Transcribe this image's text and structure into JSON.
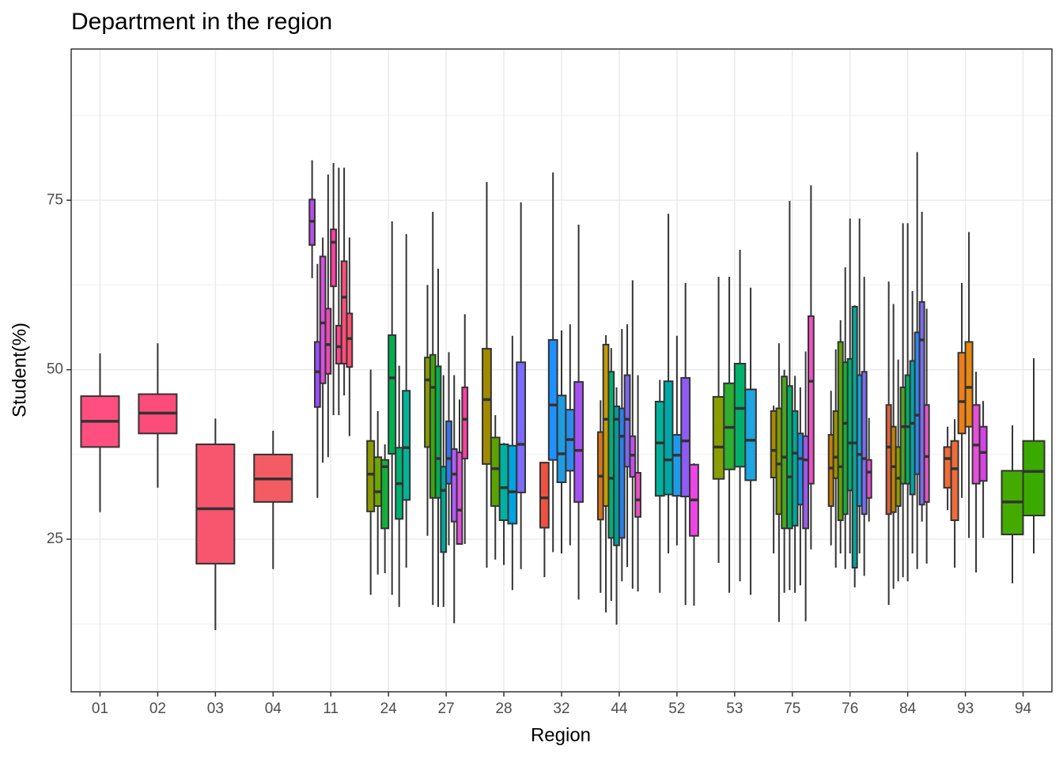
{
  "chart_data": {
    "type": "boxplot",
    "title": "Department in the region",
    "x_label": "Region",
    "y_label": "Student(%)",
    "categories": [
      "01",
      "02",
      "03",
      "04",
      "11",
      "24",
      "27",
      "28",
      "32",
      "44",
      "52",
      "53",
      "75",
      "76",
      "84",
      "93",
      "94"
    ],
    "ylim": [
      2.5,
      97.3
    ],
    "yticks": [
      25,
      50,
      75
    ],
    "grid": true,
    "minor_grid": true,
    "boxes": [
      [
        {
          "min": 29.0,
          "q1": 38.6,
          "median": 42.4,
          "q3": 46.1,
          "max": 52.4,
          "color": "#FF4F80"
        }
      ],
      [
        {
          "min": 32.6,
          "q1": 40.6,
          "median": 43.6,
          "q3": 46.4,
          "max": 53.9,
          "color": "#FC4C7A"
        }
      ],
      [
        {
          "min": 11.6,
          "q1": 21.4,
          "median": 29.5,
          "q3": 39.0,
          "max": 42.8,
          "color": "#F8566E"
        }
      ],
      [
        {
          "min": 20.6,
          "q1": 30.5,
          "median": 33.9,
          "q3": 37.5,
          "max": 41.0,
          "color": "#F35C62"
        }
      ],
      [
        {
          "min": 63.5,
          "q1": 68.4,
          "median": 71.9,
          "q3": 75.1,
          "max": 80.9,
          "color": "#B84FE8"
        },
        {
          "min": 31.1,
          "q1": 44.5,
          "median": 49.7,
          "q3": 54.1,
          "max": 65.6,
          "color": "#9B4DFF"
        },
        {
          "min": 36.3,
          "q1": 48.0,
          "median": 56.9,
          "q3": 66.7,
          "max": 69.5,
          "color": "#D94FE0"
        },
        {
          "min": 37.1,
          "q1": 49.4,
          "median": 53.7,
          "q3": 59.0,
          "max": 78.8,
          "color": "#E84BB0"
        },
        {
          "min": 43.3,
          "q1": 62.3,
          "median": 68.8,
          "q3": 70.7,
          "max": 80.5,
          "color": "#FF3FA0"
        },
        {
          "min": 43.3,
          "q1": 50.9,
          "median": 53.4,
          "q3": 56.5,
          "max": 79.8,
          "color": "#FF4590"
        },
        {
          "min": 46.2,
          "q1": 50.9,
          "median": 60.7,
          "q3": 66.0,
          "max": 79.8,
          "color": "#FF4F78"
        },
        {
          "min": 40.2,
          "q1": 50.4,
          "median": 54.6,
          "q3": 58.3,
          "max": 69.5,
          "color": "#FF5070"
        }
      ],
      [
        {
          "min": 16.8,
          "q1": 29.1,
          "median": 34.6,
          "q3": 39.5,
          "max": 50.0,
          "color": "#8B9A00"
        },
        {
          "min": 19.8,
          "q1": 29.9,
          "median": 32.0,
          "q3": 37.1,
          "max": 43.9,
          "color": "#6AA700"
        },
        {
          "min": 20.0,
          "q1": 26.6,
          "median": 35.7,
          "q3": 36.7,
          "max": 39.0,
          "color": "#13B03A"
        },
        {
          "min": 16.8,
          "q1": 37.6,
          "median": 48.8,
          "q3": 55.1,
          "max": 71.9,
          "color": "#00B050"
        },
        {
          "min": 15.0,
          "q1": 28.0,
          "median": 33.2,
          "q3": 38.5,
          "max": 50.6,
          "color": "#00B070"
        },
        {
          "min": 20.8,
          "q1": 30.8,
          "median": 38.5,
          "q3": 46.9,
          "max": 70.0,
          "color": "#00B59B"
        }
      ],
      [
        {
          "min": 25.5,
          "q1": 38.6,
          "median": 48.5,
          "q3": 51.8,
          "max": 62.5,
          "color": "#8A9A00"
        },
        {
          "min": 15.3,
          "q1": 31.1,
          "median": 47.4,
          "q3": 52.2,
          "max": 73.3,
          "color": "#3BA80A"
        },
        {
          "min": 15.0,
          "q1": 31.1,
          "median": 36.9,
          "q3": 50.5,
          "max": 64.9,
          "color": "#00B050"
        },
        {
          "min": 15.0,
          "q1": 23.1,
          "median": 32.2,
          "q3": 35.7,
          "max": 49.2,
          "color": "#00A99A"
        },
        {
          "min": 24.1,
          "q1": 33.2,
          "median": 36.9,
          "q3": 42.4,
          "max": 52.6,
          "color": "#3377EE"
        },
        {
          "min": 12.6,
          "q1": 27.6,
          "median": 34.6,
          "q3": 38.3,
          "max": 49.2,
          "color": "#B05BFF"
        },
        {
          "min": 24.3,
          "q1": 24.3,
          "median": 29.3,
          "q3": 37.8,
          "max": 45.6,
          "color": "#E052D8"
        },
        {
          "min": 24.3,
          "q1": 36.9,
          "median": 42.7,
          "q3": 47.4,
          "max": 58.2,
          "color": "#FF3FA0"
        }
      ],
      [
        {
          "min": 20.8,
          "q1": 36.1,
          "median": 45.6,
          "q3": 53.1,
          "max": 77.7,
          "color": "#A18A00"
        },
        {
          "min": 22.0,
          "q1": 29.9,
          "median": 35.4,
          "q3": 40.0,
          "max": 43.3,
          "color": "#5BA300"
        },
        {
          "min": 21.2,
          "q1": 27.8,
          "median": 32.6,
          "q3": 39.0,
          "max": 39.2,
          "color": "#00B0A0"
        },
        {
          "min": 17.5,
          "q1": 27.3,
          "median": 32.0,
          "q3": 38.8,
          "max": 55.0,
          "color": "#00A3E0"
        },
        {
          "min": 20.6,
          "q1": 31.9,
          "median": 39.0,
          "q3": 51.1,
          "max": 74.7,
          "color": "#7B6BFF"
        }
      ],
      [
        {
          "min": 19.4,
          "q1": 26.7,
          "median": 31.1,
          "q3": 36.3,
          "max": 36.4,
          "color": "#F0513F"
        },
        {
          "min": 23.1,
          "q1": 36.7,
          "median": 44.8,
          "q3": 54.4,
          "max": 79.1,
          "color": "#1E90FF"
        },
        {
          "min": 22.9,
          "q1": 33.4,
          "median": 37.6,
          "q3": 46.2,
          "max": 55.8,
          "color": "#1F9CE0"
        },
        {
          "min": 24.1,
          "q1": 35.1,
          "median": 39.7,
          "q3": 44.1,
          "max": 56.7,
          "color": "#2A8CEB"
        },
        {
          "min": 16.1,
          "q1": 30.5,
          "median": 38.1,
          "q3": 48.2,
          "max": 71.4,
          "color": "#A552F2"
        }
      ],
      [
        {
          "min": 17.1,
          "q1": 27.9,
          "median": 34.3,
          "q3": 40.8,
          "max": 45.5,
          "color": "#D9731A"
        },
        {
          "min": 14.2,
          "q1": 29.9,
          "median": 42.7,
          "q3": 53.7,
          "max": 55.1,
          "color": "#C79B00"
        },
        {
          "min": 15.9,
          "q1": 25.2,
          "median": 34.0,
          "q3": 49.7,
          "max": 53.2,
          "color": "#00B070"
        },
        {
          "min": 12.4,
          "q1": 24.1,
          "median": 42.7,
          "q3": 44.6,
          "max": 47.4,
          "color": "#009E9E"
        },
        {
          "min": 18.8,
          "q1": 25.2,
          "median": 40.2,
          "q3": 44.3,
          "max": 56.0,
          "color": "#2A80EB"
        },
        {
          "min": 20.9,
          "q1": 35.7,
          "median": 42.7,
          "q3": 49.2,
          "max": 56.7,
          "color": "#7F66F0"
        },
        {
          "min": 17.7,
          "q1": 34.2,
          "median": 37.4,
          "q3": 40.2,
          "max": 63.2,
          "color": "#C24FE6"
        },
        {
          "min": 17.3,
          "q1": 28.3,
          "median": 30.8,
          "q3": 34.8,
          "max": 49.2,
          "color": "#E94FC2"
        }
      ],
      [
        {
          "min": 17.1,
          "q1": 31.4,
          "median": 39.2,
          "q3": 45.3,
          "max": 48.5,
          "color": "#00B29A"
        },
        {
          "min": 22.9,
          "q1": 31.6,
          "median": 36.7,
          "q3": 48.3,
          "max": 73.0,
          "color": "#00A7A7"
        },
        {
          "min": 24.1,
          "q1": 31.4,
          "median": 37.4,
          "q3": 40.4,
          "max": 55.0,
          "color": "#1D9BEA"
        },
        {
          "min": 15.3,
          "q1": 31.3,
          "median": 39.5,
          "q3": 48.8,
          "max": 62.8,
          "color": "#8E5BF3"
        },
        {
          "min": 15.2,
          "q1": 25.5,
          "median": 30.8,
          "q3": 36.0,
          "max": 36.2,
          "color": "#EE45E6"
        }
      ],
      [
        {
          "min": 21.5,
          "q1": 33.9,
          "median": 38.6,
          "q3": 46.0,
          "max": 63.7,
          "color": "#8B9E00"
        },
        {
          "min": 17.1,
          "q1": 35.3,
          "median": 41.5,
          "q3": 48.0,
          "max": 63.7,
          "color": "#2FAE2F"
        },
        {
          "min": 18.8,
          "q1": 35.7,
          "median": 44.3,
          "q3": 50.9,
          "max": 67.7,
          "color": "#00B06A"
        },
        {
          "min": 16.8,
          "q1": 33.7,
          "median": 39.6,
          "q3": 47.1,
          "max": 62.1,
          "color": "#1EA6E0"
        }
      ],
      [
        {
          "min": 22.9,
          "q1": 34.1,
          "median": 38.1,
          "q3": 43.9,
          "max": 44.7,
          "color": "#A88B00"
        },
        {
          "min": 12.8,
          "q1": 28.7,
          "median": 36.1,
          "q3": 44.3,
          "max": 53.9,
          "color": "#7F9A00"
        },
        {
          "min": 17.1,
          "q1": 26.6,
          "median": 37.1,
          "q3": 49.0,
          "max": 50.0,
          "color": "#4AA61C"
        },
        {
          "min": 17.5,
          "q1": 26.6,
          "median": 34.2,
          "q3": 47.6,
          "max": 74.9,
          "color": "#00AE63"
        },
        {
          "min": 17.1,
          "q1": 27.0,
          "median": 37.7,
          "q3": 43.9,
          "max": 49.1,
          "color": "#00A898"
        },
        {
          "min": 18.2,
          "q1": 30.1,
          "median": 36.9,
          "q3": 40.6,
          "max": 47.4,
          "color": "#1B8FE5"
        },
        {
          "min": 12.9,
          "q1": 26.6,
          "median": 36.7,
          "q3": 40.2,
          "max": 52.7,
          "color": "#9D5AF0"
        },
        {
          "min": 23.5,
          "q1": 33.2,
          "median": 48.3,
          "q3": 57.9,
          "max": 77.2,
          "color": "#F24FC7"
        }
      ],
      [
        {
          "min": 24.1,
          "q1": 29.9,
          "median": 35.5,
          "q3": 40.4,
          "max": 46.9,
          "color": "#C87E00"
        },
        {
          "min": 20.8,
          "q1": 34.0,
          "median": 37.1,
          "q3": 43.9,
          "max": 53.0,
          "color": "#9E9200"
        },
        {
          "min": 22.9,
          "q1": 27.8,
          "median": 35.7,
          "q3": 54.1,
          "max": 57.3,
          "color": "#5FA600"
        },
        {
          "min": 20.6,
          "q1": 28.7,
          "median": 42.1,
          "q3": 51.1,
          "max": 65.1,
          "color": "#16B03A"
        },
        {
          "min": 22.9,
          "q1": 32.2,
          "median": 39.2,
          "q3": 51.6,
          "max": 72.3,
          "color": "#00AD72"
        },
        {
          "min": 17.9,
          "q1": 20.8,
          "median": 39.2,
          "q3": 59.3,
          "max": 59.5,
          "color": "#00A89E"
        },
        {
          "min": 22.9,
          "q1": 29.9,
          "median": 37.5,
          "q3": 49.2,
          "max": 72.3,
          "color": "#18A0D8"
        },
        {
          "min": 19.6,
          "q1": 28.7,
          "median": 36.9,
          "q3": 49.7,
          "max": 63.7,
          "color": "#7A6AF4"
        },
        {
          "min": 27.6,
          "q1": 31.1,
          "median": 34.9,
          "q3": 36.7,
          "max": 42.9,
          "color": "#E24FCF"
        }
      ],
      [
        {
          "min": 15.3,
          "q1": 28.7,
          "median": 38.6,
          "q3": 44.8,
          "max": 63.0,
          "color": "#E0623A"
        },
        {
          "min": 17.7,
          "q1": 29.0,
          "median": 35.7,
          "q3": 41.6,
          "max": 59.7,
          "color": "#C48200"
        },
        {
          "min": 18.8,
          "q1": 29.9,
          "median": 34.0,
          "q3": 38.6,
          "max": 51.5,
          "color": "#8D9800"
        },
        {
          "min": 19.4,
          "q1": 33.2,
          "median": 41.6,
          "q3": 47.4,
          "max": 71.6,
          "color": "#4EA620"
        },
        {
          "min": 18.8,
          "q1": 33.2,
          "median": 41.6,
          "q3": 49.2,
          "max": 71.6,
          "color": "#00AF63"
        },
        {
          "min": 22.9,
          "q1": 31.6,
          "median": 42.1,
          "q3": 51.3,
          "max": 61.6,
          "color": "#00A6A6"
        },
        {
          "min": 20.6,
          "q1": 34.6,
          "median": 43.3,
          "q3": 55.5,
          "max": 82.1,
          "color": "#2B87EE"
        },
        {
          "min": 27.6,
          "q1": 30.1,
          "median": 54.4,
          "q3": 60.0,
          "max": 73.3,
          "color": "#7D6CF2"
        },
        {
          "min": 21.4,
          "q1": 30.5,
          "median": 37.2,
          "q3": 44.8,
          "max": 59.0,
          "color": "#E655C8"
        }
      ],
      [
        {
          "min": 29.3,
          "q1": 32.6,
          "median": 36.9,
          "q3": 38.6,
          "max": 41.6,
          "color": "#F06A3A"
        },
        {
          "min": 20.8,
          "q1": 27.8,
          "median": 35.4,
          "q3": 39.5,
          "max": 42.7,
          "color": "#EE6C3C"
        },
        {
          "min": 31.1,
          "q1": 40.6,
          "median": 45.3,
          "q3": 52.5,
          "max": 62.8,
          "color": "#ED7F1A"
        },
        {
          "min": 25.2,
          "q1": 41.6,
          "median": 47.4,
          "q3": 54.1,
          "max": 70.3,
          "color": "#E88A10"
        },
        {
          "min": 20.1,
          "q1": 33.2,
          "median": 38.9,
          "q3": 44.8,
          "max": 49.7,
          "color": "#E64FD8"
        },
        {
          "min": 25.2,
          "q1": 33.6,
          "median": 37.8,
          "q3": 41.6,
          "max": 45.4,
          "color": "#D843E8"
        }
      ],
      [
        {
          "min": 18.5,
          "q1": 25.7,
          "median": 30.5,
          "q3": 35.1,
          "max": 41.8,
          "color": "#44AA00"
        },
        {
          "min": 22.9,
          "q1": 28.5,
          "median": 35.0,
          "q3": 39.5,
          "max": 51.7,
          "color": "#3BAA00"
        }
      ]
    ]
  }
}
